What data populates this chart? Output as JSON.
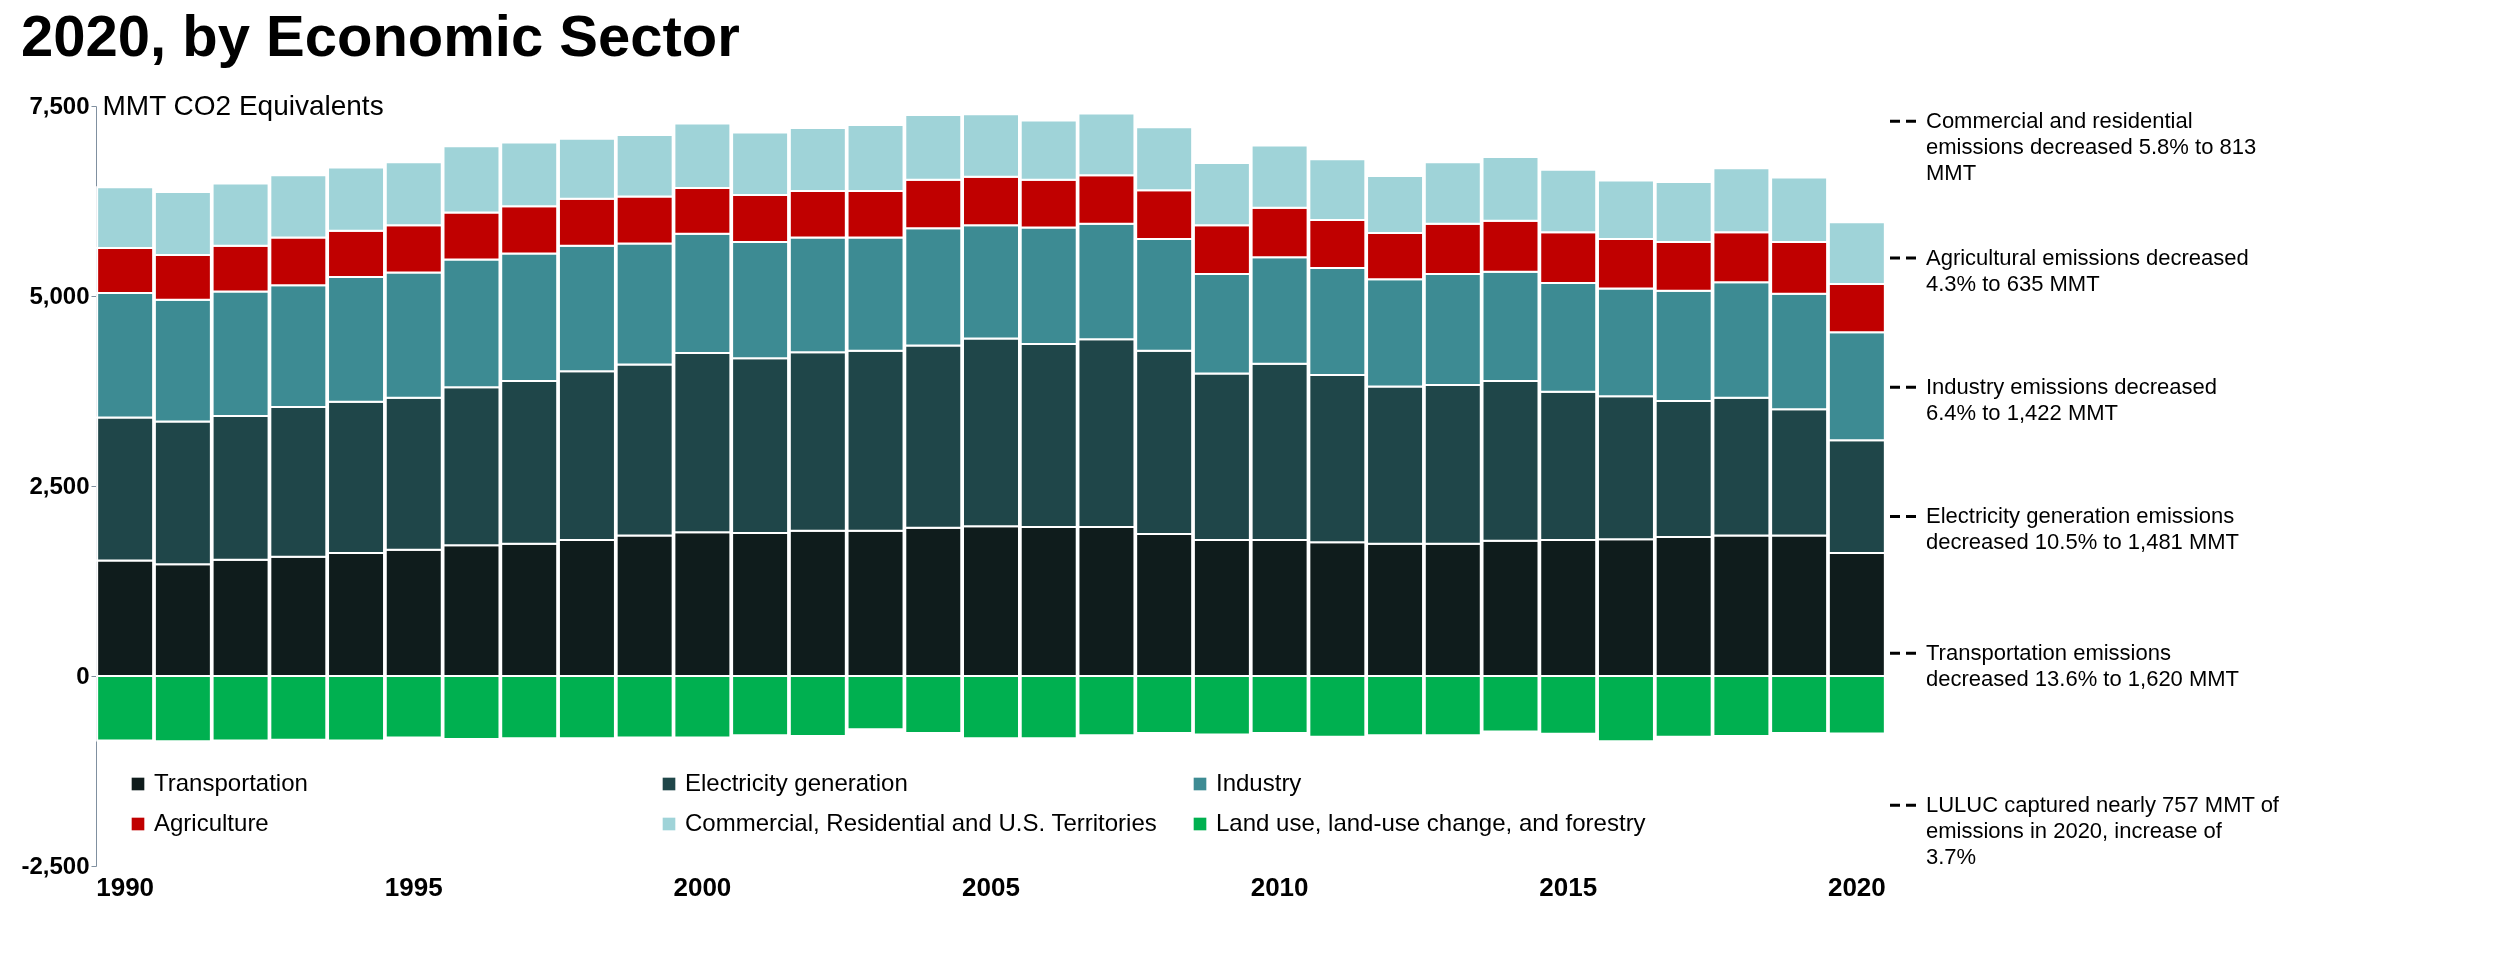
{
  "chart_data": {
    "type": "bar",
    "title": "2020, by Economic Sector",
    "ylabel": "MMT CO2 Equivalents",
    "stacked": true,
    "legend": "bottom",
    "grid": false,
    "categories": [
      "1990",
      null,
      null,
      null,
      null,
      "1995",
      null,
      null,
      null,
      null,
      "2000",
      null,
      null,
      null,
      null,
      "2005",
      null,
      null,
      null,
      null,
      "2010",
      null,
      null,
      null,
      null,
      "2015",
      null,
      null,
      null,
      null,
      "2020"
    ],
    "ylim": [
      -2500,
      7500
    ],
    "yticks": [
      {
        "value": -2500,
        "label": "-2,500"
      },
      0,
      {
        "value": 2500,
        "label": "2,500"
      },
      {
        "value": 5000,
        "label": "5,000"
      },
      {
        "value": 7500,
        "label": "7,500"
      }
    ],
    "series": [
      {
        "name": "Transportation",
        "color": "#0f1c1c",
        "values": [
          1520,
          1470,
          1530,
          1570,
          1620,
          1660,
          1720,
          1740,
          1790,
          1850,
          1890,
          1880,
          1910,
          1910,
          1950,
          1970,
          1960,
          1960,
          1870,
          1790,
          1790,
          1760,
          1740,
          1740,
          1780,
          1790,
          1800,
          1830,
          1850,
          1850,
          1620
        ]
      },
      {
        "name": "Electricity generation",
        "color": "#1f4649",
        "values": [
          1880,
          1880,
          1890,
          1970,
          1990,
          2000,
          2080,
          2140,
          2220,
          2250,
          2360,
          2300,
          2350,
          2370,
          2400,
          2470,
          2410,
          2470,
          2410,
          2190,
          2320,
          2200,
          2070,
          2090,
          2100,
          1950,
          1880,
          1790,
          1810,
          1660,
          1481
        ]
      },
      {
        "name": "Industry",
        "color": "#3d8b93",
        "values": [
          1640,
          1600,
          1640,
          1600,
          1640,
          1650,
          1680,
          1680,
          1650,
          1590,
          1570,
          1530,
          1510,
          1490,
          1540,
          1490,
          1530,
          1520,
          1470,
          1310,
          1400,
          1410,
          1410,
          1460,
          1440,
          1430,
          1420,
          1450,
          1520,
          1520,
          1422
        ]
      },
      {
        "name": "Agriculture",
        "color": "#c00000",
        "values": [
          590,
          590,
          600,
          630,
          610,
          620,
          620,
          620,
          620,
          620,
          600,
          620,
          610,
          610,
          640,
          640,
          630,
          640,
          640,
          640,
          650,
          630,
          610,
          660,
          670,
          670,
          650,
          640,
          660,
          680,
          635
        ]
      },
      {
        "name": "Commercial, Residential and U.S. Territories",
        "color": "#9fd3d8",
        "values": [
          800,
          830,
          820,
          820,
          830,
          830,
          870,
          840,
          790,
          810,
          850,
          820,
          830,
          870,
          850,
          820,
          780,
          810,
          830,
          820,
          820,
          800,
          750,
          810,
          840,
          820,
          770,
          790,
          840,
          850,
          813
        ]
      },
      {
        "name": "Land use, land-use change, and forestry",
        "color": "#00b050",
        "values": [
          -850,
          -860,
          -850,
          -840,
          -850,
          -810,
          -830,
          -820,
          -820,
          -810,
          -810,
          -780,
          -790,
          -700,
          -750,
          -820,
          -820,
          -780,
          -750,
          -770,
          -750,
          -800,
          -780,
          -780,
          -730,
          -760,
          -860,
          -800,
          -790,
          -750,
          -757
        ]
      }
    ],
    "annotations": [
      "Commercial and residential emissions decreased 5.8% to 813 MMT",
      "Agricultural emissions decreased 4.3% to 635 MMT",
      "Industry emissions decreased 6.4% to 1,422 MMT",
      "Electricity generation emissions decreased 10.5% to 1,481 MMT",
      "Transportation emissions decreased 13.6% to 1,620 MMT",
      "LULUC captured nearly 757 MMT of emissions in 2020, increase of 3.7%"
    ]
  }
}
